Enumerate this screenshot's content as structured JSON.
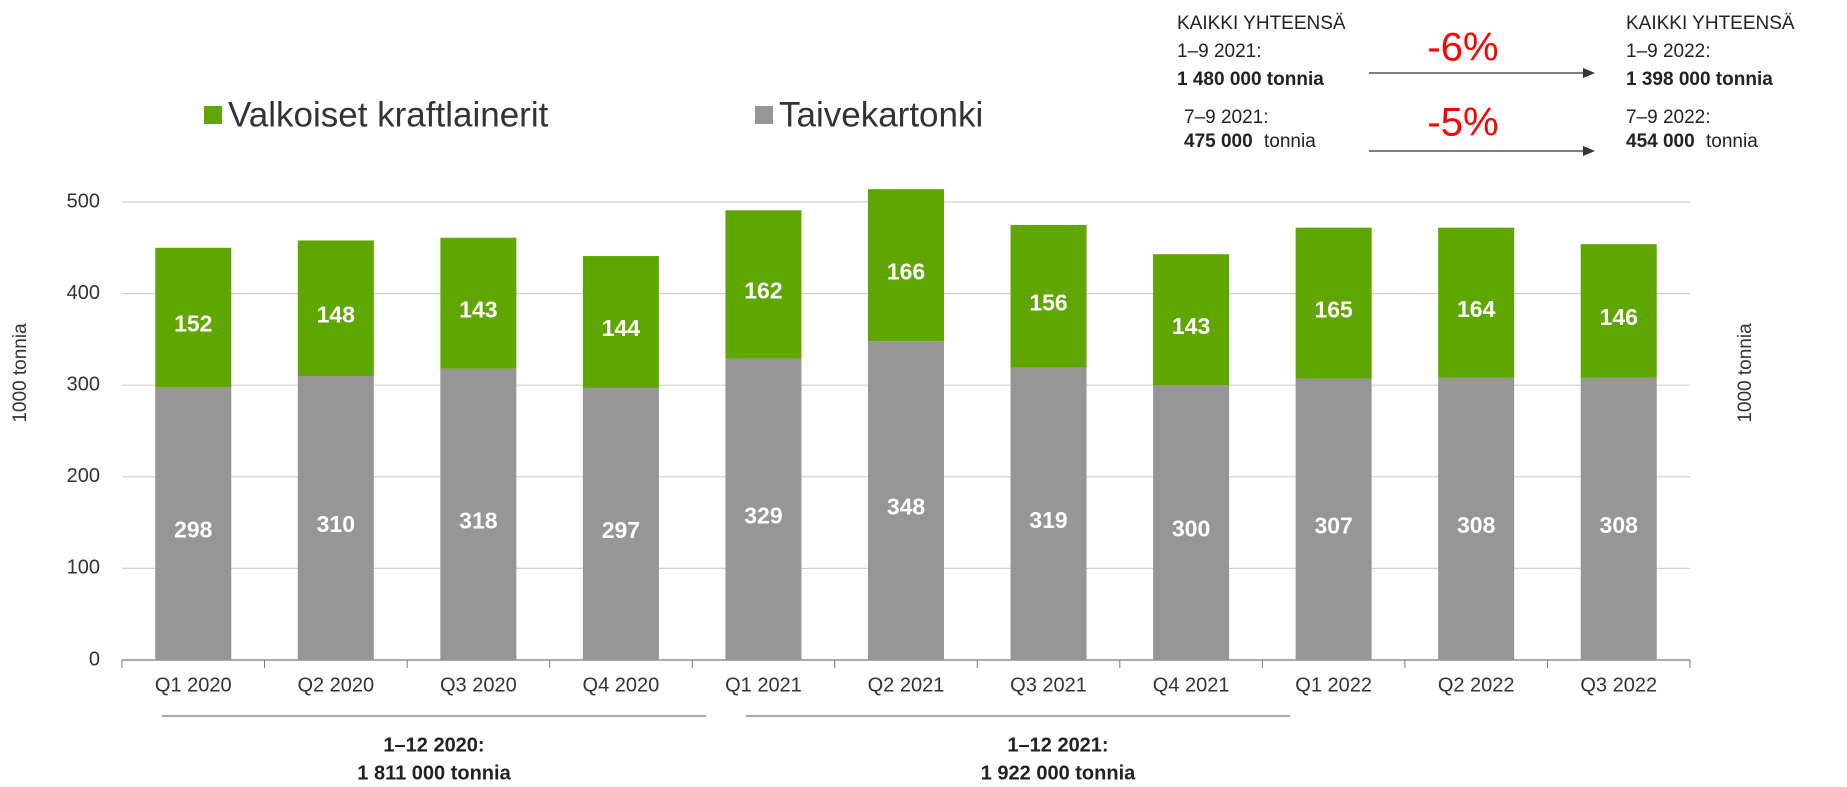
{
  "chart_data": {
    "type": "stacked_bar",
    "y_axis_label": "1000 tonnia",
    "y2_axis_label": "1000 tonnia",
    "categories": [
      "Q1 2020",
      "Q2 2020",
      "Q3 2020",
      "Q4 2020",
      "Q1 2021",
      "Q2 2021",
      "Q3 2021",
      "Q4 2021",
      "Q1 2022",
      "Q2 2022",
      "Q3 2022"
    ],
    "series": [
      {
        "name": "Taivekartonki",
        "color": "#969696",
        "values": [
          298,
          310,
          318,
          297,
          329,
          348,
          319,
          300,
          307,
          308,
          308
        ]
      },
      {
        "name": "Valkoiset kraftlainerit",
        "color": "#5fa600",
        "values": [
          152,
          148,
          143,
          144,
          162,
          166,
          156,
          143,
          165,
          164,
          146
        ]
      }
    ],
    "ylim": [
      0,
      500
    ],
    "yticks": [
      0,
      100,
      200,
      300,
      400,
      500
    ],
    "grid": true,
    "annotations": [
      "KAIKKI YHTEENSÄ",
      "1–9 2021:",
      "1 480 000 tonnia",
      "-6%",
      "KAIKKI YHTEENSÄ",
      "1–9 2022:",
      "1 398 000 tonnia",
      "7–9 2021:",
      "475 000",
      "tonnia",
      "-5%",
      "7–9 2022:",
      "454 000",
      "tonnia",
      "1–12 2020:",
      "1 811 000 tonnia",
      "1–12 2021:",
      "1 922 000 tonnia"
    ]
  }
}
